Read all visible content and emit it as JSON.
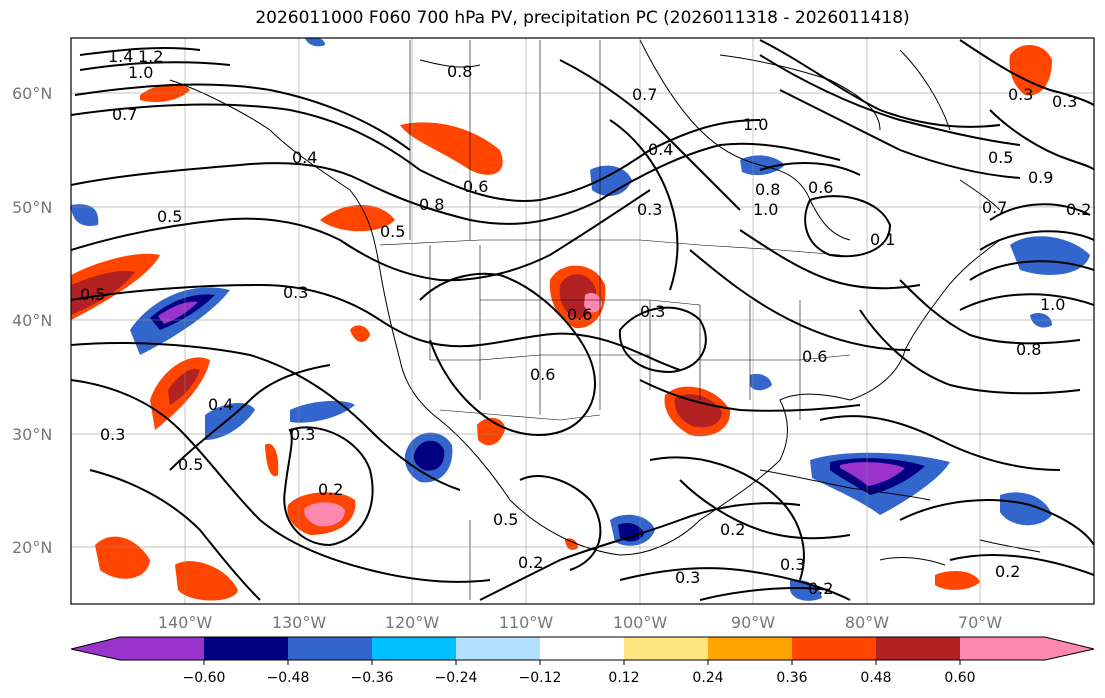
{
  "title": "2026011000 F060 700 hPa PV, precipitation PC (2026011318 - 2026011418)",
  "latitude_labels": [
    "60°N",
    "50°N",
    "40°N",
    "30°N",
    "20°N"
  ],
  "longitude_labels": [
    "140°W",
    "130°W",
    "120°W",
    "110°W",
    "100°W",
    "90°W",
    "80°W",
    "70°W"
  ],
  "colorbar": {
    "tick_labels": [
      "−0.60",
      "−0.48",
      "−0.36",
      "−0.24",
      "−0.12",
      "0.12",
      "0.24",
      "0.36",
      "0.48",
      "0.60"
    ],
    "colors": [
      "#9933cc",
      "#000080",
      "#3366cc",
      "#00bfff",
      "#b3e0ff",
      "#ffffff",
      "#ffe680",
      "#ffa500",
      "#ff4500",
      "#b22222",
      "#ff88b0"
    ]
  },
  "contour_labels": [
    "1.4",
    "1.2",
    "1.0",
    "0.7",
    "0.8",
    "0.7",
    "1.0",
    "0.3",
    "0.5",
    "0.9",
    "0.6",
    "0.4",
    "0.3",
    "0.5",
    "0.3",
    "0.5",
    "0.4",
    "0.3",
    "0.5",
    "0.2",
    "0.5",
    "0.2",
    "0.3",
    "0.2",
    "0.2",
    "0.3",
    "0.6",
    "0.3",
    "0.6",
    "0.8",
    "1.0",
    "0.6",
    "0.7",
    "0.2",
    "0.3",
    "0.2",
    "0.3",
    "0.4",
    "0.6",
    "0.8",
    "0.5",
    "0.1",
    "1.0",
    "0.8"
  ]
}
